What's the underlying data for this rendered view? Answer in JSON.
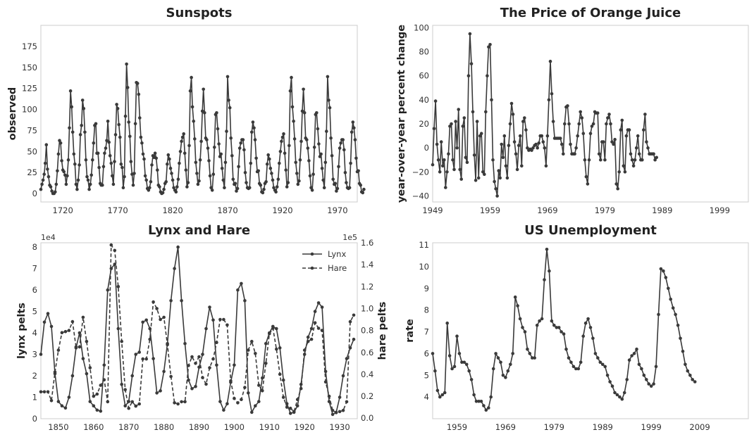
{
  "chart_data": [
    {
      "id": "sunspots",
      "type": "line",
      "title": "Sunspots",
      "xlabel": "",
      "ylabel": "observed",
      "xlim": [
        1700,
        1988
      ],
      "ylim": [
        -10,
        200
      ],
      "xticks": [
        1720,
        1770,
        1820,
        1870,
        1920,
        1970
      ],
      "xtick_labels": [
        "1720",
        "1770",
        "1820",
        "1870",
        "1920",
        "1970"
      ],
      "yticks": [
        0,
        25,
        50,
        75,
        100,
        125,
        150,
        175
      ],
      "ytick_labels": [
        "0",
        "25",
        "50",
        "75",
        "100",
        "125",
        "150",
        "175"
      ],
      "series": [
        {
          "name": "observed",
          "style": "solid",
          "x_start": 1700,
          "x_step": 1,
          "values": [
            5,
            11,
            16,
            23,
            36,
            58,
            29,
            20,
            10,
            8,
            3,
            0,
            0,
            2,
            11,
            27,
            47,
            63,
            60,
            39,
            28,
            26,
            22,
            11,
            21,
            40,
            78,
            122,
            103,
            73,
            47,
            35,
            11,
            5,
            16,
            34,
            70,
            81,
            111,
            101,
            73,
            40,
            20,
            16,
            5,
            11,
            22,
            40,
            60,
            81,
            83,
            48,
            48,
            31,
            12,
            10,
            10,
            32,
            48,
            54,
            63,
            86,
            61,
            45,
            36,
            21,
            11,
            38,
            70,
            106,
            101,
            82,
            67,
            35,
            31,
            7,
            20,
            92,
            154,
            126,
            85,
            68,
            38,
            23,
            10,
            24,
            83,
            132,
            131,
            118,
            90,
            67,
            60,
            47,
            41,
            21,
            16,
            6,
            4,
            7,
            14,
            34,
            45,
            43,
            48,
            42,
            28,
            10,
            8,
            2,
            0,
            1,
            5,
            12,
            14,
            35,
            46,
            41,
            30,
            24,
            16,
            7,
            4,
            2,
            8,
            17,
            36,
            50,
            62,
            67,
            71,
            48,
            28,
            8,
            13,
            57,
            122,
            138,
            103,
            86,
            65,
            37,
            24,
            11,
            15,
            40,
            62,
            98,
            124,
            96,
            66,
            64,
            54,
            39,
            21,
            7,
            4,
            23,
            55,
            94,
            96,
            77,
            59,
            44,
            47,
            30,
            16,
            7,
            37,
            74,
            139,
            111,
            102,
            66,
            45,
            17,
            11,
            12,
            3,
            6,
            32,
            54,
            60,
            64,
            64,
            52,
            25,
            13,
            7,
            6,
            7,
            36,
            73,
            85,
            78,
            64,
            42,
            26,
            27,
            12,
            10,
            2,
            1,
            5,
            12,
            14,
            35,
            46,
            41,
            30,
            24,
            16,
            7,
            4,
            2,
            8,
            17,
            36,
            50,
            62,
            67,
            71,
            48,
            28,
            8,
            13,
            57,
            122,
            138,
            103,
            86,
            65,
            37,
            24,
            11,
            15,
            40,
            62,
            98,
            124,
            96,
            66,
            64,
            54,
            39,
            21,
            7,
            4,
            23,
            55,
            94,
            96,
            77,
            59,
            44,
            47,
            30,
            16,
            7,
            37,
            74,
            139,
            111,
            102,
            66,
            45,
            17,
            11,
            12,
            3,
            6,
            32,
            54,
            60,
            64,
            64,
            52,
            25,
            13,
            7,
            6,
            7,
            36,
            73,
            85,
            78,
            64,
            42,
            26,
            27,
            12,
            10,
            2,
            1,
            5
          ]
        }
      ]
    },
    {
      "id": "orange-juice",
      "type": "line",
      "title": "The Price of Orange Juice",
      "xlabel": "",
      "ylabel": "year-over-year percent change",
      "xlim": [
        1949,
        2004
      ],
      "ylim": [
        -45,
        102
      ],
      "xticks": [
        1949,
        1959,
        1969,
        1979,
        1989,
        1999
      ],
      "xtick_labels": [
        "1949",
        "1959",
        "1969",
        "1979",
        "1989",
        "1999"
      ],
      "yticks": [
        -40,
        -20,
        0,
        20,
        40,
        60,
        80,
        100
      ],
      "ytick_labels": [
        "−40",
        "−20",
        "0",
        "20",
        "40",
        "60",
        "80",
        "100"
      ],
      "series": [
        {
          "name": "percent change",
          "style": "solid",
          "x_start": 1949,
          "x_step": 0.25,
          "values": [
            -14,
            16,
            39,
            3,
            -10,
            -20,
            5,
            -15,
            -10,
            -33,
            -20,
            -5,
            18,
            20,
            -10,
            -18,
            22,
            0,
            32,
            -18,
            -26,
            18,
            25,
            -8,
            -12,
            60,
            95,
            70,
            30,
            -6,
            -27,
            22,
            -25,
            10,
            12,
            -20,
            -22,
            30,
            60,
            84,
            86,
            40,
            -10,
            -28,
            -34,
            -40,
            -19,
            -25,
            3,
            -8,
            10,
            -15,
            -25,
            2,
            20,
            37,
            28,
            5,
            -5,
            -18,
            2,
            10,
            -15,
            22,
            25,
            15,
            0,
            -2,
            -1,
            -2,
            0,
            2,
            3,
            0,
            4,
            10,
            10,
            5,
            0,
            -15,
            10,
            40,
            72,
            45,
            22,
            8,
            8,
            8,
            8,
            8,
            3,
            -5,
            20,
            34,
            35,
            20,
            3,
            -5,
            -5,
            -5,
            0,
            10,
            20,
            30,
            25,
            12,
            -10,
            -24,
            -30,
            -10,
            12,
            18,
            20,
            30,
            29,
            29,
            -5,
            -10,
            5,
            5,
            -10,
            20,
            25,
            28,
            20,
            5,
            3,
            7,
            -30,
            -34,
            -20,
            15,
            23,
            -15,
            -20,
            10,
            15,
            15,
            -5,
            -10,
            -15,
            -10,
            0,
            10,
            -5,
            -10,
            -10,
            15,
            28,
            5,
            0,
            -5,
            -5,
            -5,
            -5,
            -10,
            -8
          ]
        }
      ]
    },
    {
      "id": "lynx-hare",
      "type": "line",
      "title": "Lynx and Hare",
      "xlabel": "",
      "ylabel": "lynx pelts",
      "ylabel_right": "hare pelts",
      "x_range": [
        1845,
        1935
      ],
      "y_range": [
        0,
        82000
      ],
      "y_range_right": [
        -5000,
        1600000
      ],
      "xticks": [
        1850,
        1860,
        1870,
        1880,
        1890,
        1900,
        1910,
        1920,
        1930
      ],
      "xtick_labels": [
        "1850",
        "1860",
        "1870",
        "1880",
        "1890",
        "1900",
        "1910",
        "1920",
        "1930"
      ],
      "yticks_left": [
        0,
        10000,
        20000,
        30000,
        40000,
        50000,
        60000,
        70000,
        80000
      ],
      "ytick_labels_left": [
        "0",
        "1",
        "2",
        "3",
        "4",
        "5",
        "6",
        "7",
        "8"
      ],
      "yticks_right": [
        0,
        200000,
        400000,
        600000,
        800000,
        1000000,
        1200000,
        1400000,
        1600000
      ],
      "ytick_labels_right": [
        "0.0",
        "0.2",
        "0.4",
        "0.6",
        "0.8",
        "1.0",
        "1.2",
        "1.4",
        "1.6"
      ],
      "offset_left": "1e4",
      "offset_right": "1e5",
      "legend_position": "top-right",
      "series": [
        {
          "name": "Lynx",
          "style": "solid",
          "axis": "left",
          "x_start": 1845,
          "x_step": 1,
          "values": [
            30000,
            45000,
            49000,
            43000,
            21000,
            8000,
            6000,
            5000,
            10000,
            20000,
            33000,
            40000,
            28000,
            21000,
            8000,
            6000,
            4000,
            3500,
            25000,
            60000,
            70000,
            72000,
            42000,
            16000,
            6000,
            8000,
            20000,
            30000,
            31000,
            45000,
            46000,
            42000,
            28000,
            12000,
            13000,
            22000,
            35000,
            55000,
            70000,
            80000,
            55000,
            35000,
            18000,
            14000,
            15000,
            24000,
            30000,
            42000,
            52000,
            46000,
            25000,
            8000,
            4000,
            7000,
            17000,
            25000,
            60000,
            63000,
            55000,
            12000,
            3000,
            6000,
            8000,
            19000,
            35000,
            40000,
            43000,
            42000,
            33000,
            18000,
            7000,
            2500,
            3000,
            6000,
            16000,
            30000,
            38000,
            42000,
            50000,
            54000,
            52000,
            22000,
            8000,
            2000,
            3000,
            10000,
            20000,
            28000,
            33000,
            37000
          ]
        },
        {
          "name": "Hare",
          "style": "dashed",
          "axis": "right",
          "x_start": 1845,
          "x_step": 1,
          "values": [
            240000,
            240000,
            240000,
            160000,
            420000,
            620000,
            780000,
            790000,
            800000,
            880000,
            650000,
            650000,
            920000,
            700000,
            460000,
            200000,
            220000,
            300000,
            350000,
            150000,
            1580000,
            1530000,
            1200000,
            700000,
            260000,
            90000,
            150000,
            110000,
            130000,
            540000,
            540000,
            720000,
            1060000,
            1000000,
            900000,
            920000,
            670000,
            380000,
            140000,
            130000,
            150000,
            150000,
            480000,
            560000,
            500000,
            560000,
            370000,
            310000,
            460000,
            540000,
            690000,
            900000,
            900000,
            850000,
            340000,
            180000,
            140000,
            170000,
            280000,
            620000,
            700000,
            590000,
            300000,
            250000,
            500000,
            770000,
            820000,
            630000,
            400000,
            190000,
            100000,
            90000,
            60000,
            170000,
            270000,
            620000,
            700000,
            720000,
            870000,
            820000,
            800000,
            330000,
            200000,
            70000,
            50000,
            60000,
            70000,
            150000,
            880000,
            940000
          ]
        }
      ]
    },
    {
      "id": "us-unemployment",
      "type": "line",
      "title": "US Unemployment",
      "xlabel": "",
      "ylabel": "rate",
      "xlim": [
        1954,
        2019
      ],
      "ylim": [
        3,
        11.1
      ],
      "xticks": [
        1959,
        1969,
        1979,
        1989,
        1999,
        2009
      ],
      "xtick_labels": [
        "1959",
        "1969",
        "1979",
        "1989",
        "1999",
        "2009"
      ],
      "yticks": [
        4,
        5,
        6,
        7,
        8,
        9,
        10,
        11
      ],
      "ytick_labels": [
        "4",
        "5",
        "6",
        "7",
        "8",
        "9",
        "10",
        "11"
      ],
      "series": [
        {
          "name": "rate",
          "style": "solid",
          "x_start": 1954,
          "x_step": 0.5,
          "values": [
            6.0,
            5.2,
            4.3,
            4.0,
            4.1,
            4.2,
            7.4,
            5.9,
            5.3,
            5.4,
            6.8,
            6.0,
            5.6,
            5.6,
            5.5,
            5.2,
            4.8,
            4.1,
            3.8,
            3.8,
            3.8,
            3.6,
            3.4,
            3.5,
            4.0,
            5.3,
            6.0,
            5.8,
            5.6,
            5.0,
            4.9,
            5.2,
            5.5,
            6.0,
            8.6,
            8.2,
            7.6,
            7.2,
            7.0,
            6.2,
            6.0,
            5.8,
            5.8,
            7.3,
            7.5,
            7.6,
            9.4,
            10.8,
            9.8,
            7.5,
            7.3,
            7.2,
            7.2,
            7.0,
            6.9,
            6.2,
            5.8,
            5.6,
            5.4,
            5.3,
            5.3,
            5.6,
            6.8,
            7.4,
            7.6,
            7.2,
            6.7,
            6.0,
            5.8,
            5.6,
            5.5,
            5.4,
            5.0,
            4.7,
            4.5,
            4.2,
            4.1,
            4.0,
            3.9,
            4.2,
            4.8,
            5.7,
            5.9,
            6.0,
            6.2,
            5.5,
            5.3,
            5.0,
            4.8,
            4.6,
            4.5,
            4.6,
            5.4,
            7.8,
            9.9,
            9.8,
            9.5,
            9.0,
            8.5,
            8.1,
            7.8,
            7.3,
            6.7,
            6.1,
            5.5,
            5.2,
            5.0,
            4.8,
            4.7
          ]
        }
      ]
    }
  ]
}
